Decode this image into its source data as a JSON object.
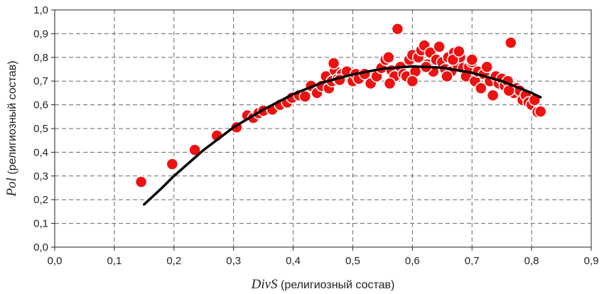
{
  "chart_data": {
    "type": "scatter",
    "xlabel": {
      "var": "DivS",
      "rest": " (религиозный состав)"
    },
    "ylabel": {
      "var": "Pol",
      "rest": " (религиозный состав)"
    },
    "xlim": [
      0,
      0.9
    ],
    "ylim": [
      0,
      1.0
    ],
    "x_ticks": [
      "0,0",
      "0,1",
      "0,2",
      "0,3",
      "0,4",
      "0,5",
      "0,6",
      "0,7",
      "0,8",
      "0,9"
    ],
    "y_ticks": [
      "0,0",
      "0,1",
      "0,2",
      "0,3",
      "0,4",
      "0,5",
      "0,6",
      "0,7",
      "0,8",
      "0,9",
      "1,0"
    ],
    "grid": true,
    "point_color": "#ee1111",
    "fit_color": "#000000",
    "points": [
      [
        0.145,
        0.275
      ],
      [
        0.197,
        0.35
      ],
      [
        0.235,
        0.41
      ],
      [
        0.272,
        0.47
      ],
      [
        0.305,
        0.505
      ],
      [
        0.323,
        0.555
      ],
      [
        0.333,
        0.545
      ],
      [
        0.342,
        0.565
      ],
      [
        0.35,
        0.575
      ],
      [
        0.365,
        0.58
      ],
      [
        0.378,
        0.6
      ],
      [
        0.39,
        0.61
      ],
      [
        0.398,
        0.63
      ],
      [
        0.41,
        0.64
      ],
      [
        0.42,
        0.635
      ],
      [
        0.43,
        0.68
      ],
      [
        0.44,
        0.65
      ],
      [
        0.448,
        0.68
      ],
      [
        0.455,
        0.72
      ],
      [
        0.46,
        0.67
      ],
      [
        0.465,
        0.7
      ],
      [
        0.47,
        0.745
      ],
      [
        0.475,
        0.71
      ],
      [
        0.482,
        0.73
      ],
      [
        0.49,
        0.74
      ],
      [
        0.5,
        0.7
      ],
      [
        0.505,
        0.73
      ],
      [
        0.51,
        0.71
      ],
      [
        0.52,
        0.73
      ],
      [
        0.53,
        0.69
      ],
      [
        0.54,
        0.72
      ],
      [
        0.548,
        0.755
      ],
      [
        0.555,
        0.79
      ],
      [
        0.56,
        0.8
      ],
      [
        0.565,
        0.745
      ],
      [
        0.57,
        0.72
      ],
      [
        0.575,
        0.92
      ],
      [
        0.58,
        0.76
      ],
      [
        0.585,
        0.73
      ],
      [
        0.59,
        0.72
      ],
      [
        0.595,
        0.79
      ],
      [
        0.6,
        0.81
      ],
      [
        0.605,
        0.74
      ],
      [
        0.61,
        0.8
      ],
      [
        0.615,
        0.83
      ],
      [
        0.62,
        0.85
      ],
      [
        0.625,
        0.77
      ],
      [
        0.63,
        0.82
      ],
      [
        0.635,
        0.74
      ],
      [
        0.64,
        0.79
      ],
      [
        0.645,
        0.845
      ],
      [
        0.65,
        0.78
      ],
      [
        0.655,
        0.75
      ],
      [
        0.66,
        0.8
      ],
      [
        0.665,
        0.74
      ],
      [
        0.67,
        0.82
      ],
      [
        0.675,
        0.77
      ],
      [
        0.68,
        0.8
      ],
      [
        0.685,
        0.755
      ],
      [
        0.69,
        0.72
      ],
      [
        0.695,
        0.76
      ],
      [
        0.7,
        0.78
      ],
      [
        0.705,
        0.7
      ],
      [
        0.71,
        0.74
      ],
      [
        0.715,
        0.67
      ],
      [
        0.72,
        0.73
      ],
      [
        0.725,
        0.76
      ],
      [
        0.73,
        0.7
      ],
      [
        0.735,
        0.64
      ],
      [
        0.74,
        0.72
      ],
      [
        0.745,
        0.69
      ],
      [
        0.75,
        0.71
      ],
      [
        0.755,
        0.68
      ],
      [
        0.76,
        0.7
      ],
      [
        0.765,
        0.862
      ],
      [
        0.77,
        0.65
      ],
      [
        0.775,
        0.67
      ],
      [
        0.78,
        0.66
      ],
      [
        0.785,
        0.62
      ],
      [
        0.79,
        0.64
      ],
      [
        0.795,
        0.61
      ],
      [
        0.8,
        0.6
      ],
      [
        0.805,
        0.62
      ],
      [
        0.81,
        0.57
      ],
      [
        0.815,
        0.572
      ],
      [
        0.468,
        0.775
      ],
      [
        0.478,
        0.705
      ],
      [
        0.562,
        0.69
      ],
      [
        0.6,
        0.7
      ],
      [
        0.623,
        0.76
      ],
      [
        0.658,
        0.72
      ],
      [
        0.668,
        0.79
      ],
      [
        0.678,
        0.825
      ],
      [
        0.7,
        0.79
      ],
      [
        0.762,
        0.66
      ]
    ],
    "fit": [
      [
        0.15,
        0.18
      ],
      [
        0.18,
        0.25
      ],
      [
        0.2,
        0.3
      ],
      [
        0.25,
        0.41
      ],
      [
        0.3,
        0.505
      ],
      [
        0.35,
        0.58
      ],
      [
        0.4,
        0.645
      ],
      [
        0.45,
        0.695
      ],
      [
        0.5,
        0.728
      ],
      [
        0.55,
        0.752
      ],
      [
        0.6,
        0.762
      ],
      [
        0.65,
        0.757
      ],
      [
        0.7,
        0.735
      ],
      [
        0.75,
        0.7
      ],
      [
        0.8,
        0.65
      ],
      [
        0.815,
        0.632
      ]
    ]
  }
}
